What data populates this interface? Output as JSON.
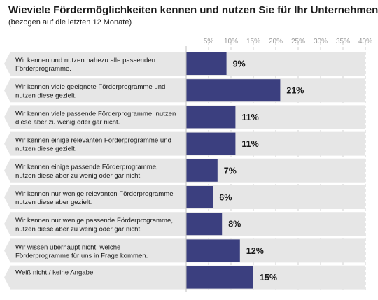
{
  "chart_data": {
    "type": "bar",
    "orientation": "horizontal",
    "title": "Wieviele Fördermöglichkeiten kennen und nutzen Sie für Ihr Unternehmen?",
    "subtitle": "(bezogen auf die letzten 12 Monate)",
    "xlim": [
      0,
      40
    ],
    "ticks": [
      "5%",
      "10%",
      "15%",
      "20%",
      "25%",
      "30%",
      "35%",
      "40%"
    ],
    "tick_values": [
      5,
      10,
      15,
      20,
      25,
      30,
      35,
      40
    ],
    "grid": true,
    "bar_color": "#3b3f7f",
    "band_color": "#e6e6e6",
    "categories": [
      [
        "Wir kennen und nutzen nahezu alle passenden",
        "Förderprogramme."
      ],
      [
        "Wir kennen viele geeignete Förderprogramme und",
        "nutzen diese gezielt."
      ],
      [
        "Wir kennen viele passende Förderprogramme, nutzen",
        "diese aber zu wenig oder gar nicht."
      ],
      [
        "Wir kennen einige relevanten Förderprogramme und",
        "nutzen diese gezielt."
      ],
      [
        "Wir kennen einige passende Förderprogramme,",
        "nutzen diese aber zu wenig oder gar nicht."
      ],
      [
        "Wir kennen nur wenige relevanten Förderprogramme",
        "nutzen diese aber gezielt."
      ],
      [
        "Wir kennen nur wenige passende Förderprogramme,",
        "nutzen diese aber zu wenig oder gar nicht."
      ],
      [
        "Wir wissen überhaupt nicht, welche",
        "Förderprogramme für uns in Frage kommen."
      ],
      [
        "Weiß nicht / keine Angabe"
      ]
    ],
    "values": [
      9,
      21,
      11,
      11,
      7,
      6,
      8,
      12,
      15
    ],
    "value_labels": [
      "9%",
      "21%",
      "11%",
      "11%",
      "7%",
      "6%",
      "8%",
      "12%",
      "15%"
    ]
  }
}
